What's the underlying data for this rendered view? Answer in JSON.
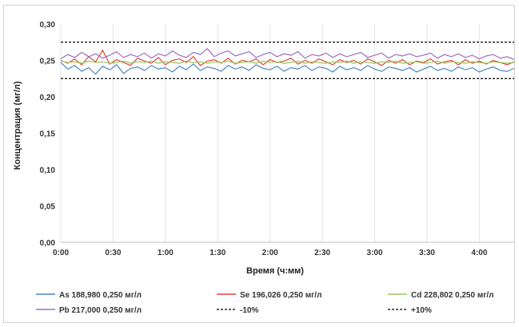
{
  "chart_data": {
    "type": "line",
    "xlabel": "Время (ч:мм)",
    "ylabel": "Концентрация (мг/л)",
    "x_range_minutes": [
      0,
      260
    ],
    "x_ticks": [
      "0:00",
      "0:30",
      "1:00",
      "1:30",
      "2:00",
      "2:30",
      "3:00",
      "3:30",
      "4:00"
    ],
    "y_ticks": [
      "0,00",
      "0,05",
      "0,10",
      "0,15",
      "0,20",
      "0,25",
      "0,30"
    ],
    "ylim": [
      0,
      0.3
    ],
    "grid": "vertical",
    "legend_position": "bottom",
    "reference_lines": [
      {
        "name": "-10%",
        "value": 0.225,
        "color": "#000000",
        "style": "dashed"
      },
      {
        "name": "+10%",
        "value": 0.275,
        "color": "#000000",
        "style": "dashed"
      }
    ],
    "series": [
      {
        "name": "As 188,980 0,250 мг/л",
        "color": "#4a86c8",
        "x": [
          0,
          4,
          8,
          12,
          16,
          20,
          24,
          28,
          32,
          36,
          40,
          44,
          48,
          52,
          56,
          60,
          64,
          68,
          72,
          76,
          80,
          84,
          88,
          92,
          96,
          100,
          104,
          108,
          112,
          116,
          120,
          124,
          128,
          132,
          136,
          140,
          144,
          148,
          152,
          156,
          160,
          164,
          168,
          172,
          176,
          180,
          184,
          188,
          192,
          196,
          200,
          204,
          208,
          212,
          216,
          220,
          224,
          228,
          232,
          236,
          240,
          244,
          248,
          252,
          256,
          260
        ],
        "values": [
          0.247,
          0.238,
          0.243,
          0.235,
          0.24,
          0.231,
          0.242,
          0.237,
          0.244,
          0.232,
          0.239,
          0.241,
          0.236,
          0.243,
          0.238,
          0.24,
          0.234,
          0.242,
          0.237,
          0.245,
          0.236,
          0.241,
          0.239,
          0.235,
          0.243,
          0.238,
          0.241,
          0.236,
          0.244,
          0.239,
          0.237,
          0.242,
          0.235,
          0.24,
          0.238,
          0.243,
          0.236,
          0.241,
          0.239,
          0.234,
          0.242,
          0.237,
          0.24,
          0.236,
          0.243,
          0.238,
          0.235,
          0.241,
          0.239,
          0.236,
          0.24,
          0.234,
          0.238,
          0.242,
          0.236,
          0.239,
          0.235,
          0.241,
          0.237,
          0.24,
          0.234,
          0.238,
          0.241,
          0.236,
          0.235,
          0.239
        ]
      },
      {
        "name": "Se 196,026 0,250 мг/л",
        "color": "#e0463a",
        "x": [
          0,
          4,
          8,
          12,
          16,
          20,
          24,
          28,
          32,
          36,
          40,
          44,
          48,
          52,
          56,
          60,
          64,
          68,
          72,
          76,
          80,
          84,
          88,
          92,
          96,
          100,
          104,
          108,
          112,
          116,
          120,
          124,
          128,
          132,
          136,
          140,
          144,
          148,
          152,
          156,
          160,
          164,
          168,
          172,
          176,
          180,
          184,
          188,
          192,
          196,
          200,
          204,
          208,
          212,
          216,
          220,
          224,
          228,
          232,
          236,
          240,
          244,
          248,
          252,
          256,
          260
        ],
        "values": [
          0.25,
          0.246,
          0.252,
          0.244,
          0.255,
          0.248,
          0.264,
          0.245,
          0.251,
          0.247,
          0.243,
          0.253,
          0.249,
          0.246,
          0.254,
          0.244,
          0.25,
          0.252,
          0.247,
          0.255,
          0.243,
          0.249,
          0.251,
          0.246,
          0.253,
          0.245,
          0.25,
          0.248,
          0.252,
          0.244,
          0.251,
          0.247,
          0.249,
          0.253,
          0.245,
          0.25,
          0.246,
          0.252,
          0.248,
          0.244,
          0.251,
          0.247,
          0.25,
          0.245,
          0.252,
          0.248,
          0.243,
          0.25,
          0.246,
          0.251,
          0.244,
          0.249,
          0.247,
          0.252,
          0.245,
          0.248,
          0.25,
          0.244,
          0.251,
          0.246,
          0.249,
          0.245,
          0.25,
          0.247,
          0.244,
          0.248
        ]
      },
      {
        "name": "Cd 228,802 0,250 мг/л",
        "color": "#9cc45a",
        "x": [
          0,
          4,
          8,
          12,
          16,
          20,
          24,
          28,
          32,
          36,
          40,
          44,
          48,
          52,
          56,
          60,
          64,
          68,
          72,
          76,
          80,
          84,
          88,
          92,
          96,
          100,
          104,
          108,
          112,
          116,
          120,
          124,
          128,
          132,
          136,
          140,
          144,
          148,
          152,
          156,
          160,
          164,
          168,
          172,
          176,
          180,
          184,
          188,
          192,
          196,
          200,
          204,
          208,
          212,
          216,
          220,
          224,
          228,
          232,
          236,
          240,
          244,
          248,
          252,
          256,
          260
        ],
        "values": [
          0.249,
          0.247,
          0.248,
          0.246,
          0.249,
          0.247,
          0.248,
          0.246,
          0.247,
          0.249,
          0.246,
          0.248,
          0.247,
          0.249,
          0.246,
          0.248,
          0.247,
          0.246,
          0.249,
          0.247,
          0.248,
          0.246,
          0.248,
          0.247,
          0.249,
          0.246,
          0.247,
          0.248,
          0.246,
          0.249,
          0.247,
          0.248,
          0.246,
          0.247,
          0.249,
          0.246,
          0.248,
          0.247,
          0.246,
          0.248,
          0.247,
          0.249,
          0.246,
          0.248,
          0.247,
          0.246,
          0.248,
          0.247,
          0.249,
          0.246,
          0.247,
          0.248,
          0.246,
          0.247,
          0.249,
          0.246,
          0.248,
          0.247,
          0.246,
          0.248,
          0.247,
          0.246,
          0.248,
          0.247,
          0.246,
          0.247
        ]
      },
      {
        "name": "Pb 217,000 0,250 мг/л",
        "color": "#9b6fc3",
        "x": [
          0,
          4,
          8,
          12,
          16,
          20,
          24,
          28,
          32,
          36,
          40,
          44,
          48,
          52,
          56,
          60,
          64,
          68,
          72,
          76,
          80,
          84,
          88,
          92,
          96,
          100,
          104,
          108,
          112,
          116,
          120,
          124,
          128,
          132,
          136,
          140,
          144,
          148,
          152,
          156,
          160,
          164,
          168,
          172,
          176,
          180,
          184,
          188,
          192,
          196,
          200,
          204,
          208,
          212,
          216,
          220,
          224,
          228,
          232,
          236,
          240,
          244,
          248,
          252,
          256,
          260
        ],
        "values": [
          0.252,
          0.258,
          0.254,
          0.261,
          0.255,
          0.259,
          0.253,
          0.257,
          0.262,
          0.254,
          0.258,
          0.255,
          0.26,
          0.253,
          0.259,
          0.256,
          0.263,
          0.257,
          0.254,
          0.261,
          0.258,
          0.266,
          0.255,
          0.26,
          0.263,
          0.256,
          0.259,
          0.262,
          0.254,
          0.258,
          0.261,
          0.255,
          0.259,
          0.257,
          0.262,
          0.253,
          0.258,
          0.256,
          0.26,
          0.254,
          0.259,
          0.255,
          0.258,
          0.261,
          0.254,
          0.257,
          0.26,
          0.253,
          0.258,
          0.256,
          0.259,
          0.255,
          0.257,
          0.26,
          0.253,
          0.258,
          0.255,
          0.259,
          0.254,
          0.257,
          0.252,
          0.256,
          0.258,
          0.253,
          0.255,
          0.251
        ]
      }
    ]
  }
}
